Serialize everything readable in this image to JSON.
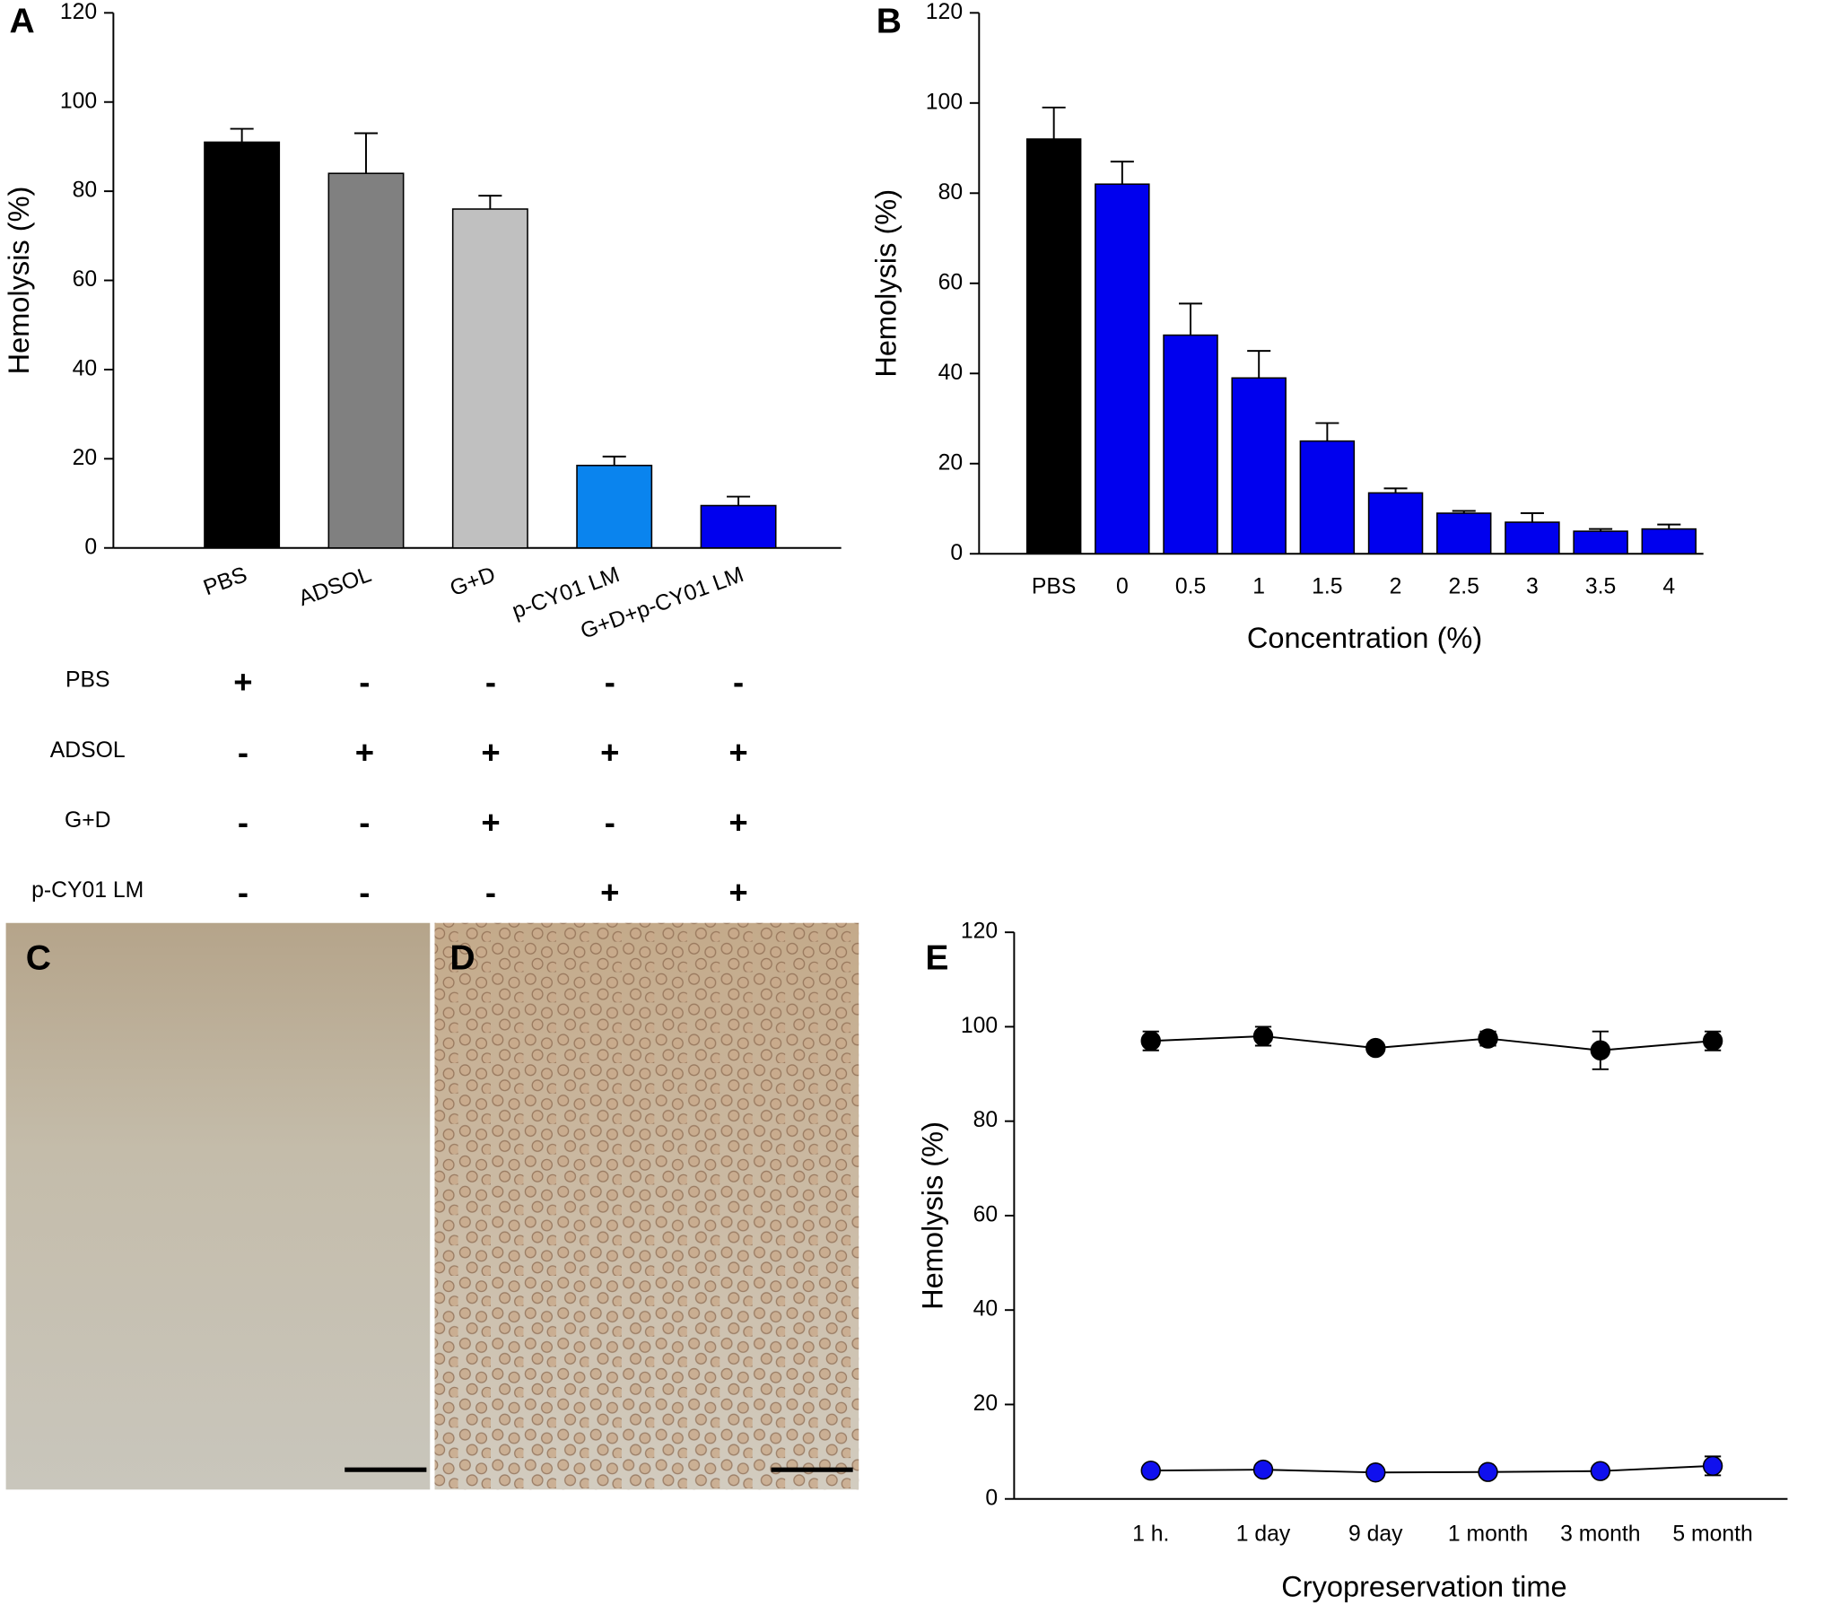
{
  "chart_data": [
    {
      "type": "bar",
      "panel": "A",
      "ylabel": "Hemolysis (%)",
      "categories": [
        "PBS",
        "ADSOL",
        "G+D",
        "p-CY01 LM",
        "G+D+p-CY01 LM"
      ],
      "values": [
        91,
        84,
        76,
        18.5,
        9.5
      ],
      "errors": [
        3,
        9,
        3,
        2,
        2
      ],
      "colors": [
        "#000000",
        "#808080",
        "#c0c0c0",
        "#0a84ee",
        "#0000ee"
      ],
      "ylim": [
        0,
        120
      ],
      "yticks": [
        0,
        20,
        40,
        60,
        80,
        100,
        120
      ],
      "table": {
        "rows": [
          {
            "label": "PBS",
            "cells": [
              "+",
              "-",
              "-",
              "-",
              "-"
            ]
          },
          {
            "label": "ADSOL",
            "cells": [
              "-",
              "+",
              "+",
              "+",
              "+"
            ]
          },
          {
            "label": "G+D",
            "cells": [
              "-",
              "-",
              "+",
              "-",
              "+"
            ]
          },
          {
            "label": "p-CY01 LM",
            "cells": [
              "-",
              "-",
              "-",
              "+",
              "+"
            ]
          }
        ]
      }
    },
    {
      "type": "bar",
      "panel": "B",
      "ylabel": "Hemolysis (%)",
      "xlabel": "Concentration (%)",
      "categories": [
        "PBS",
        "0",
        "0.5",
        "1",
        "1.5",
        "2",
        "2.5",
        "3",
        "3.5",
        "4"
      ],
      "values": [
        92,
        82,
        48.5,
        39,
        25,
        13.5,
        9,
        7,
        5,
        5.5
      ],
      "errors": [
        7,
        5,
        7,
        6,
        4,
        1,
        0.5,
        2,
        0.5,
        1
      ],
      "colors": [
        "#000000",
        "#0000ee",
        "#0000ee",
        "#0000ee",
        "#0000ee",
        "#0000ee",
        "#0000ee",
        "#0000ee",
        "#0000ee",
        "#0000ee"
      ],
      "ylim": [
        0,
        120
      ],
      "yticks": [
        0,
        20,
        40,
        60,
        80,
        100,
        120
      ]
    },
    {
      "type": "line",
      "panel": "E",
      "ylabel": "Hemolysis (%)",
      "xlabel": "Cryopreservation time",
      "categories": [
        "1 h.",
        "1 day",
        "9 day",
        "1 month",
        "3 month",
        "5 month"
      ],
      "series": [
        {
          "color": "#000000",
          "values": [
            97,
            98,
            95.5,
            97.5,
            95,
            97
          ],
          "errors": [
            2,
            2,
            1,
            1.5,
            4,
            2
          ]
        },
        {
          "color": "#1010ee",
          "values": [
            6,
            6.2,
            5.6,
            5.7,
            5.9,
            7
          ],
          "errors": [
            0.5,
            0.5,
            0.5,
            0.5,
            0.5,
            2
          ]
        }
      ],
      "ylim": [
        0,
        120
      ],
      "yticks": [
        0,
        20,
        40,
        60,
        80,
        100,
        120
      ]
    }
  ],
  "images": [
    {
      "label": "C"
    },
    {
      "label": "D"
    }
  ]
}
